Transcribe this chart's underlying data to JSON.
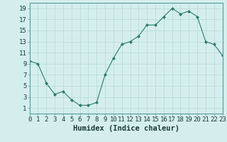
{
  "x": [
    0,
    1,
    2,
    3,
    4,
    5,
    6,
    7,
    8,
    9,
    10,
    11,
    12,
    13,
    14,
    15,
    16,
    17,
    18,
    19,
    20,
    21,
    22,
    23
  ],
  "y": [
    9.5,
    9.0,
    5.5,
    3.5,
    4.0,
    2.5,
    1.5,
    1.5,
    2.0,
    7.0,
    10.0,
    12.5,
    13.0,
    14.0,
    16.0,
    16.0,
    17.5,
    19.0,
    18.0,
    18.5,
    17.5,
    13.0,
    12.5,
    10.5
  ],
  "line_color": "#2d7a6a",
  "marker_color": "#2d7a6a",
  "bg_color": "#d4eeee",
  "grid_major_color": "#b8d8d8",
  "grid_minor_color": "#c8e4e4",
  "xlabel": "Humidex (Indice chaleur)",
  "xlim": [
    0,
    23
  ],
  "ylim": [
    0,
    20
  ],
  "yticks": [
    1,
    3,
    5,
    7,
    9,
    11,
    13,
    15,
    17,
    19
  ],
  "xticks": [
    0,
    1,
    2,
    3,
    4,
    5,
    6,
    7,
    8,
    9,
    10,
    11,
    12,
    13,
    14,
    15,
    16,
    17,
    18,
    19,
    20,
    21,
    22,
    23
  ],
  "font_size": 6.5,
  "xlabel_font_size": 7.5
}
